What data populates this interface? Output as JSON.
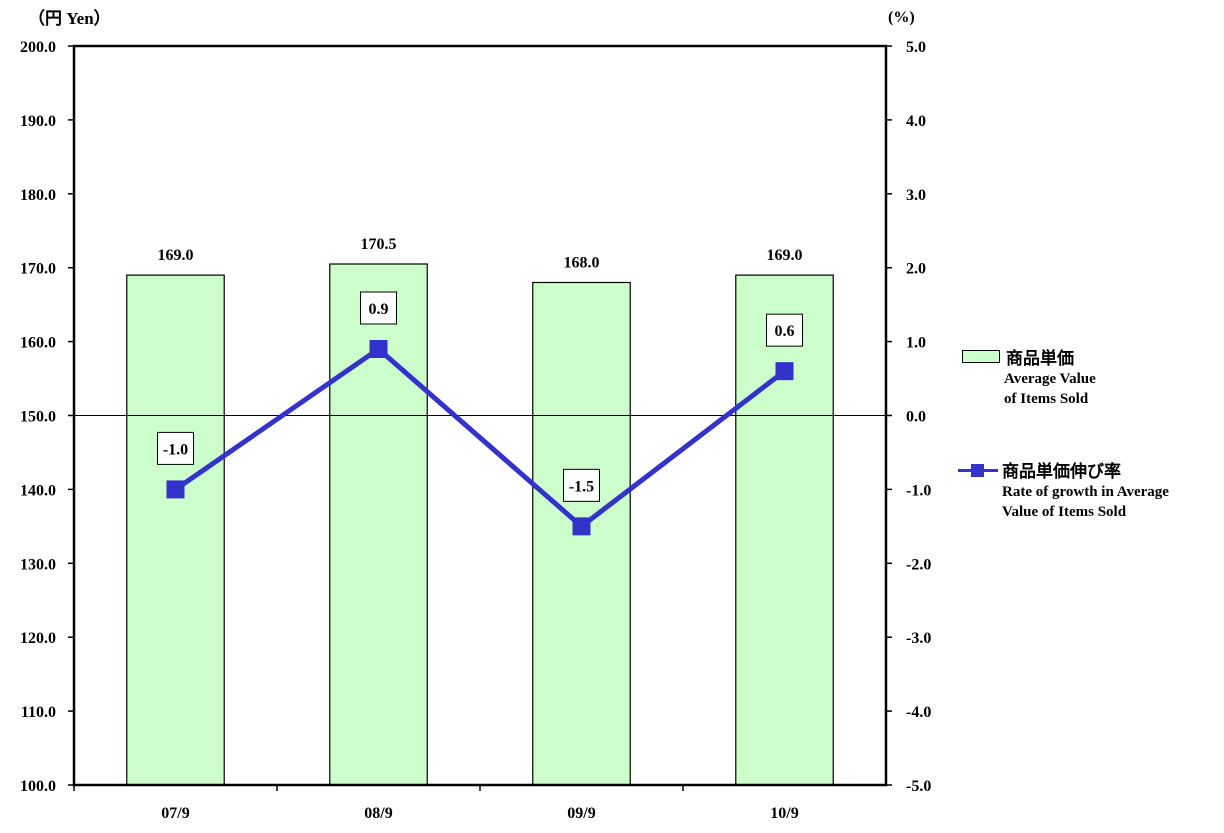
{
  "chart_data": {
    "type": "bar",
    "categories": [
      "07/9",
      "08/9",
      "09/9",
      "10/9"
    ],
    "left_axis_unit": "（円 Yen）",
    "right_axis_unit": "(%)",
    "left_ylim": [
      100,
      200
    ],
    "right_ylim": [
      -5,
      5
    ],
    "left_ticks": [
      "200.0",
      "190.0",
      "180.0",
      "170.0",
      "160.0",
      "150.0",
      "140.0",
      "130.0",
      "120.0",
      "110.0",
      "100.0"
    ],
    "right_ticks": [
      "5.0",
      "4.0",
      "3.0",
      "2.0",
      "1.0",
      "0.0",
      "-1.0",
      "-2.0",
      "-3.0",
      "-4.0",
      "-5.0"
    ],
    "series": [
      {
        "kind": "bar",
        "name_jp": "商品単価",
        "name_en_line1": "Average Value",
        "name_en_line2": "of Items Sold",
        "axis": "left",
        "values": [
          169.0,
          170.5,
          168.0,
          169.0
        ],
        "labels": [
          "169.0",
          "170.5",
          "168.0",
          "169.0"
        ],
        "color": "#ccffcc"
      },
      {
        "kind": "line",
        "name_jp": "商品単価伸び率",
        "name_en_line1": "Rate of growth in Average",
        "name_en_line2": "Value of Items Sold",
        "axis": "right",
        "values": [
          -1.0,
          0.9,
          -1.5,
          0.6
        ],
        "labels": [
          "-1.0",
          "0.9",
          "-1.5",
          "0.6"
        ],
        "color": "#3333cc"
      }
    ],
    "grid": false,
    "legend_position": "right"
  }
}
